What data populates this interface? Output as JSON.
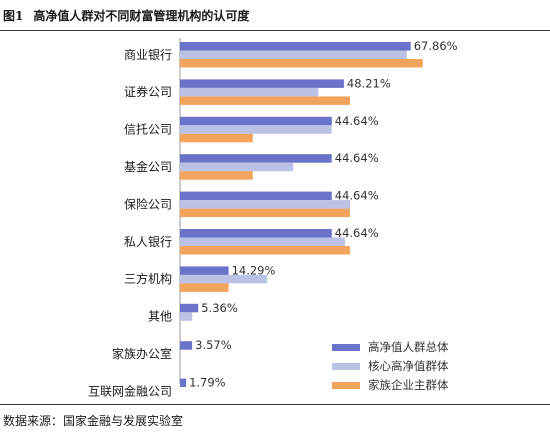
{
  "header": {
    "figure_label": "图1",
    "title": "高净值人群对不同财富管理机构的认可度"
  },
  "footer": {
    "source": "数据来源：国家金融与发展实验室"
  },
  "chart_data": {
    "type": "bar",
    "orientation": "horizontal",
    "categories": [
      "商业银行",
      "证券公司",
      "信托公司",
      "基金公司",
      "保险公司",
      "私人银行",
      "三方机构",
      "其他",
      "家族办公室",
      "互联网金融公司"
    ],
    "series": [
      {
        "name": "高净值人群总体",
        "color": "#6a72c9",
        "values": [
          67.86,
          48.21,
          44.64,
          44.64,
          44.64,
          44.64,
          14.29,
          5.36,
          3.57,
          1.79
        ]
      },
      {
        "name": "核心高净值群体",
        "color": "#bcc1e6",
        "values": [
          66.7,
          40.7,
          44.6,
          33.3,
          50.0,
          48.5,
          25.6,
          3.6,
          0,
          0
        ]
      },
      {
        "name": "家族企业主群体",
        "color": "#f2a35c",
        "values": [
          71.4,
          50.0,
          21.4,
          21.4,
          50.0,
          50.0,
          14.3,
          0,
          0,
          0
        ]
      }
    ],
    "data_labels": [
      "67.86%",
      "48.21%",
      "44.64%",
      "44.64%",
      "44.64%",
      "44.64%",
      "14.29%",
      "5.36%",
      "3.57%",
      "1.79%"
    ],
    "legend_position": "bottom-right",
    "grid": false,
    "xlim": [
      0,
      75
    ]
  }
}
